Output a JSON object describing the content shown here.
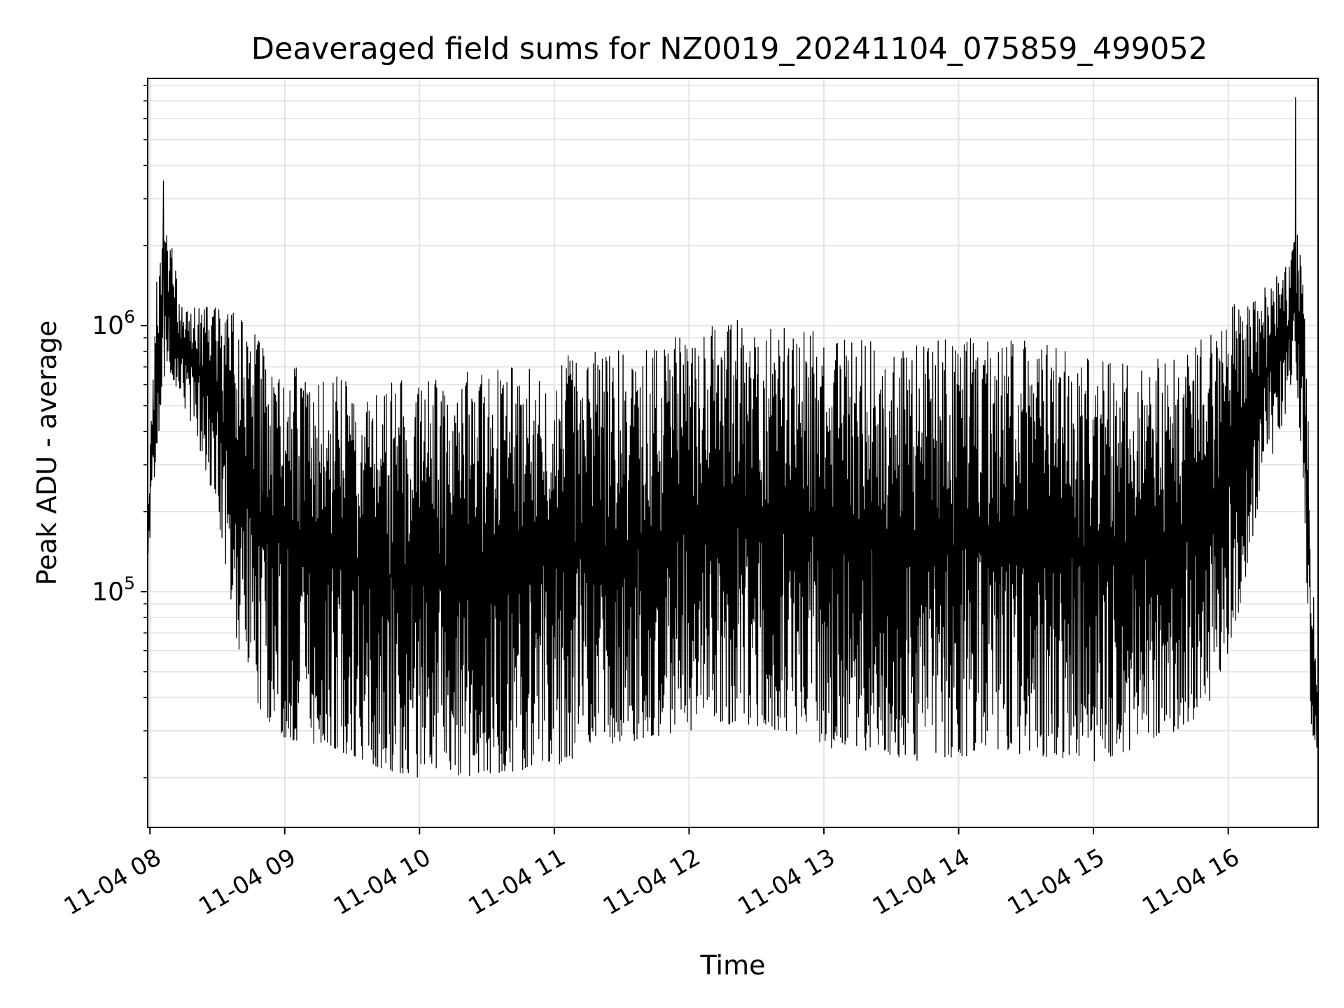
{
  "chart_data": {
    "type": "line",
    "title": "Deaveraged field sums for NZ0019_20241104_075859_499052",
    "xlabel": "Time",
    "ylabel": "Peak ADU - average",
    "y_scale": "log",
    "ylim": [
      13000,
      8500000
    ],
    "xlim": [
      "2024-11-04 07:59",
      "2024-11-04 16:40"
    ],
    "x_ticks": [
      {
        "time": "2024-11-04 08:00",
        "label": "11-04 08"
      },
      {
        "time": "2024-11-04 09:00",
        "label": "11-04 09"
      },
      {
        "time": "2024-11-04 10:00",
        "label": "11-04 10"
      },
      {
        "time": "2024-11-04 11:00",
        "label": "11-04 11"
      },
      {
        "time": "2024-11-04 12:00",
        "label": "11-04 12"
      },
      {
        "time": "2024-11-04 13:00",
        "label": "11-04 13"
      },
      {
        "time": "2024-11-04 14:00",
        "label": "11-04 14"
      },
      {
        "time": "2024-11-04 15:00",
        "label": "11-04 15"
      },
      {
        "time": "2024-11-04 16:00",
        "label": "11-04 16"
      }
    ],
    "y_ticks": [
      {
        "value": 100000,
        "base": "10",
        "exp": "5"
      },
      {
        "value": 1000000,
        "base": "10",
        "exp": "6"
      }
    ],
    "grid": true,
    "line_color": "#000000",
    "envelope": {
      "time": [
        "2024-11-04 07:59",
        "2024-11-04 08:03",
        "2024-11-04 08:08",
        "2024-11-04 08:15",
        "2024-11-04 08:20",
        "2024-11-04 08:30",
        "2024-11-04 08:40",
        "2024-11-04 08:50",
        "2024-11-04 09:00",
        "2024-11-04 09:20",
        "2024-11-04 09:40",
        "2024-11-04 10:00",
        "2024-11-04 10:20",
        "2024-11-04 10:40",
        "2024-11-04 11:00",
        "2024-11-04 11:20",
        "2024-11-04 11:40",
        "2024-11-04 12:00",
        "2024-11-04 12:20",
        "2024-11-04 12:40",
        "2024-11-04 13:00",
        "2024-11-04 13:20",
        "2024-11-04 13:40",
        "2024-11-04 14:00",
        "2024-11-04 14:20",
        "2024-11-04 14:40",
        "2024-11-04 15:00",
        "2024-11-04 15:20",
        "2024-11-04 15:40",
        "2024-11-04 15:55",
        "2024-11-04 16:05",
        "2024-11-04 16:15",
        "2024-11-04 16:25",
        "2024-11-04 16:30",
        "2024-11-04 16:34",
        "2024-11-04 16:37",
        "2024-11-04 16:40"
      ],
      "low": [
        120000,
        350000,
        700000,
        500000,
        400000,
        200000,
        55000,
        35000,
        28000,
        26000,
        22000,
        20000,
        20000,
        21000,
        22000,
        26000,
        28000,
        30000,
        32000,
        30000,
        26000,
        24000,
        23000,
        24000,
        25000,
        24000,
        23000,
        26000,
        30000,
        42000,
        85000,
        250000,
        450000,
        700000,
        200000,
        30000,
        25000
      ],
      "high": [
        200000,
        1500000,
        2600000,
        1100000,
        1200000,
        1300000,
        1100000,
        850000,
        780000,
        680000,
        600000,
        640000,
        680000,
        700000,
        760000,
        800000,
        820000,
        950000,
        1050000,
        1020000,
        950000,
        880000,
        860000,
        900000,
        900000,
        850000,
        750000,
        720000,
        820000,
        950000,
        1300000,
        1400000,
        1600000,
        2400000,
        1500000,
        150000,
        40000
      ]
    },
    "peaks": [
      {
        "time": "2024-11-04 08:06",
        "value": 3500000
      },
      {
        "time": "2024-11-04 16:30",
        "value": 7200000
      }
    ]
  }
}
